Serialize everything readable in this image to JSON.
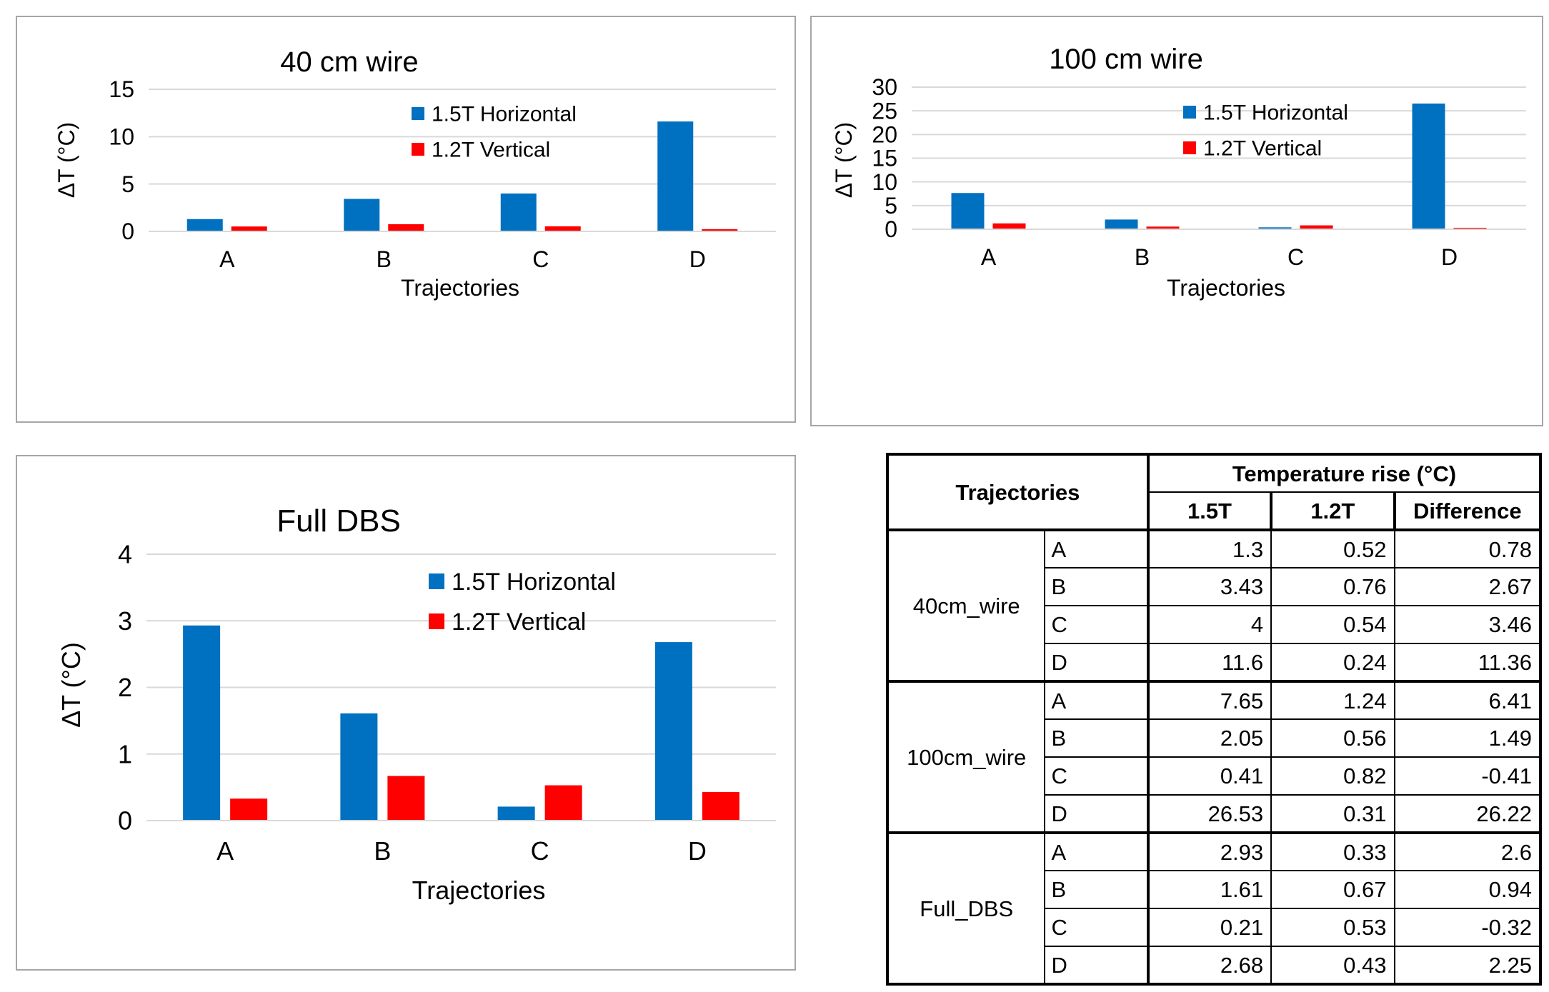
{
  "colors": {
    "horizontal": "#0070c0",
    "vertical": "#ff0000",
    "grid": "#d9d9d9"
  },
  "chart_data": [
    {
      "type": "bar",
      "title": "40 cm wire",
      "xlabel": "Trajectories",
      "ylabel": "ΔT (°C)",
      "categories": [
        "A",
        "B",
        "C",
        "D"
      ],
      "ylim": [
        0,
        15
      ],
      "yticks": [
        0,
        5,
        10,
        15
      ],
      "series": [
        {
          "name": "1.5T Horizontal",
          "values": [
            1.3,
            3.43,
            4,
            11.6
          ]
        },
        {
          "name": "1.2T Vertical",
          "values": [
            0.52,
            0.76,
            0.54,
            0.24
          ]
        }
      ]
    },
    {
      "type": "bar",
      "title": "100 cm wire",
      "xlabel": "Trajectories",
      "ylabel": "ΔT (°C)",
      "categories": [
        "A",
        "B",
        "C",
        "D"
      ],
      "ylim": [
        0,
        30
      ],
      "yticks": [
        0,
        5,
        10,
        15,
        20,
        25,
        30
      ],
      "series": [
        {
          "name": "1.5T Horizontal",
          "values": [
            7.65,
            2.05,
            0.41,
            26.53
          ]
        },
        {
          "name": "1.2T Vertical",
          "values": [
            1.24,
            0.56,
            0.82,
            0.31
          ]
        }
      ]
    },
    {
      "type": "bar",
      "title": "Full DBS",
      "xlabel": "Trajectories",
      "ylabel": "ΔT (°C)",
      "categories": [
        "A",
        "B",
        "C",
        "D"
      ],
      "ylim": [
        0,
        4
      ],
      "yticks": [
        0,
        1,
        2,
        3,
        4
      ],
      "series": [
        {
          "name": "1.5T Horizontal",
          "values": [
            2.93,
            1.61,
            0.21,
            2.68
          ]
        },
        {
          "name": "1.2T Vertical",
          "values": [
            0.33,
            0.67,
            0.53,
            0.43
          ]
        }
      ]
    }
  ],
  "table": {
    "header_trajectories": "Trajectories",
    "header_temp": "Temperature rise (°C)",
    "col_1": "1.5T",
    "col_2": "1.2T",
    "col_3": "Difference",
    "groups": [
      {
        "name": "40cm_wire",
        "rows": [
          {
            "traj": "A",
            "v1": "1.3",
            "v2": "0.52",
            "diff": "0.78"
          },
          {
            "traj": "B",
            "v1": "3.43",
            "v2": "0.76",
            "diff": "2.67"
          },
          {
            "traj": "C",
            "v1": "4",
            "v2": "0.54",
            "diff": "3.46"
          },
          {
            "traj": "D",
            "v1": "11.6",
            "v2": "0.24",
            "diff": "11.36"
          }
        ]
      },
      {
        "name": "100cm_wire",
        "rows": [
          {
            "traj": "A",
            "v1": "7.65",
            "v2": "1.24",
            "diff": "6.41"
          },
          {
            "traj": "B",
            "v1": "2.05",
            "v2": "0.56",
            "diff": "1.49"
          },
          {
            "traj": "C",
            "v1": "0.41",
            "v2": "0.82",
            "diff": "-0.41"
          },
          {
            "traj": "D",
            "v1": "26.53",
            "v2": "0.31",
            "diff": "26.22"
          }
        ]
      },
      {
        "name": "Full_DBS",
        "rows": [
          {
            "traj": "A",
            "v1": "2.93",
            "v2": "0.33",
            "diff": "2.6"
          },
          {
            "traj": "B",
            "v1": "1.61",
            "v2": "0.67",
            "diff": "0.94"
          },
          {
            "traj": "C",
            "v1": "0.21",
            "v2": "0.53",
            "diff": "-0.32"
          },
          {
            "traj": "D",
            "v1": "2.68",
            "v2": "0.43",
            "diff": "2.25"
          }
        ]
      }
    ]
  }
}
